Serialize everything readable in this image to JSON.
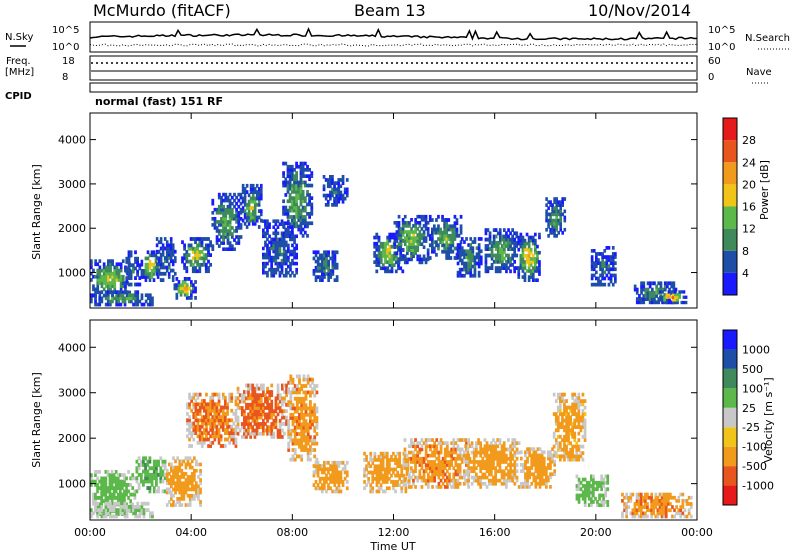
{
  "header": {
    "station": "McMurdo (fitACF)",
    "beam": "Beam 13",
    "date": "10/Nov/2014"
  },
  "top_panels": {
    "nsky_label": "N.Sky",
    "nsky_ticks": [
      "10^5",
      "10^0"
    ],
    "nsearch_label": "N.Search",
    "nsearch_ticks": [
      "10^5",
      "10^0"
    ],
    "freq_label_1": "Freq.",
    "freq_label_2": "[MHz]",
    "freq_ticks": [
      "18",
      "8"
    ],
    "nave_label": "Nave",
    "nave_ticks": [
      "60",
      "0"
    ],
    "cpid_label": "CPID",
    "cpid_text": "normal (fast) 151 RF"
  },
  "colors": {
    "power_scale": [
      "#1a1aff",
      "#1e4fa8",
      "#3f8a5a",
      "#5cb84a",
      "#f0c419",
      "#f29a1c",
      "#e8561e",
      "#e61a1a"
    ],
    "velocity_scale": [
      "#e61a1a",
      "#e8561e",
      "#f29a1c",
      "#f0c419",
      "#c8c8c8",
      "#5cb84a",
      "#3f8a5a",
      "#1e4fa8",
      "#1a1aff"
    ]
  },
  "chart_data": [
    {
      "type": "heatmap",
      "quantity": "power",
      "ylabel": "Slant Range [km]",
      "yticks": [
        "1000",
        "2000",
        "3000",
        "4000"
      ],
      "ylim": [
        200,
        4600
      ],
      "xlim_hours": [
        0,
        24
      ],
      "colorbar_label": "Power [dB]",
      "colorbar_ticks": [
        "4",
        "8",
        "12",
        "16",
        "20",
        "24",
        "28"
      ],
      "events": [
        {
          "t": [
            0.0,
            1.6
          ],
          "r": [
            450,
            1300
          ],
          "v": 18
        },
        {
          "t": [
            0.0,
            2.5
          ],
          "r": [
            250,
            600
          ],
          "v": 12
        },
        {
          "t": [
            1.4,
            2.0
          ],
          "r": [
            700,
            1500
          ],
          "v": 10
        },
        {
          "t": [
            2.0,
            2.8
          ],
          "r": [
            800,
            1500
          ],
          "v": 20
        },
        {
          "t": [
            2.6,
            3.4
          ],
          "r": [
            800,
            1800
          ],
          "v": 8
        },
        {
          "t": [
            3.3,
            4.2
          ],
          "r": [
            400,
            900
          ],
          "v": 22
        },
        {
          "t": [
            3.6,
            4.8
          ],
          "r": [
            1000,
            1800
          ],
          "v": 18
        },
        {
          "t": [
            4.8,
            6.0
          ],
          "r": [
            1500,
            2800
          ],
          "v": 14
        },
        {
          "t": [
            6.0,
            6.8
          ],
          "r": [
            2000,
            3000
          ],
          "v": 16
        },
        {
          "t": [
            6.8,
            8.2
          ],
          "r": [
            900,
            2200
          ],
          "v": 8
        },
        {
          "t": [
            7.6,
            8.8
          ],
          "r": [
            1800,
            3500
          ],
          "v": 14
        },
        {
          "t": [
            8.8,
            9.8
          ],
          "r": [
            800,
            1500
          ],
          "v": 10
        },
        {
          "t": [
            9.2,
            10.2
          ],
          "r": [
            2500,
            3200
          ],
          "v": 8
        },
        {
          "t": [
            11.2,
            12.4
          ],
          "r": [
            1000,
            1900
          ],
          "v": 18
        },
        {
          "t": [
            12.0,
            13.4
          ],
          "r": [
            1200,
            2300
          ],
          "v": 16
        },
        {
          "t": [
            13.4,
            14.7
          ],
          "r": [
            1300,
            2300
          ],
          "v": 14
        },
        {
          "t": [
            14.5,
            15.5
          ],
          "r": [
            900,
            1800
          ],
          "v": 12
        },
        {
          "t": [
            15.6,
            16.9
          ],
          "r": [
            1000,
            2000
          ],
          "v": 14
        },
        {
          "t": [
            16.9,
            17.8
          ],
          "r": [
            800,
            1900
          ],
          "v": 20
        },
        {
          "t": [
            18.0,
            18.8
          ],
          "r": [
            1800,
            2700
          ],
          "v": 12
        },
        {
          "t": [
            19.8,
            20.8
          ],
          "r": [
            700,
            1600
          ],
          "v": 8
        },
        {
          "t": [
            21.5,
            23.2
          ],
          "r": [
            300,
            800
          ],
          "v": 12
        },
        {
          "t": [
            22.5,
            23.6
          ],
          "r": [
            300,
            600
          ],
          "v": 24
        }
      ]
    },
    {
      "type": "heatmap",
      "quantity": "velocity",
      "ylabel": "Slant Range [km]",
      "yticks": [
        "1000",
        "2000",
        "3000",
        "4000"
      ],
      "ylim": [
        200,
        4600
      ],
      "xlabel": "Time UT",
      "xticks": [
        "00:00",
        "04:00",
        "08:00",
        "12:00",
        "16:00",
        "20:00",
        "00:00"
      ],
      "colorbar_label": "Velocity [m s⁻¹]",
      "colorbar_ticks": [
        "-1000",
        "-500",
        "-100",
        "-25",
        "25",
        "100",
        "500",
        "1000"
      ],
      "events": [
        {
          "t": [
            0.0,
            1.8
          ],
          "r": [
            300,
            1300
          ],
          "v": 50
        },
        {
          "t": [
            0.0,
            2.5
          ],
          "r": [
            250,
            600
          ],
          "v": 20
        },
        {
          "t": [
            1.8,
            3.0
          ],
          "r": [
            800,
            1600
          ],
          "v": 80
        },
        {
          "t": [
            3.0,
            4.4
          ],
          "r": [
            500,
            1600
          ],
          "v": -300
        },
        {
          "t": [
            3.8,
            5.8
          ],
          "r": [
            1800,
            3000
          ],
          "v": -500
        },
        {
          "t": [
            5.8,
            7.8
          ],
          "r": [
            2000,
            3200
          ],
          "v": -600
        },
        {
          "t": [
            7.8,
            9.0
          ],
          "r": [
            1500,
            3400
          ],
          "v": -400
        },
        {
          "t": [
            8.8,
            10.2
          ],
          "r": [
            800,
            1500
          ],
          "v": -200
        },
        {
          "t": [
            10.8,
            12.6
          ],
          "r": [
            800,
            1700
          ],
          "v": -300
        },
        {
          "t": [
            12.4,
            15.0
          ],
          "r": [
            900,
            2000
          ],
          "v": -400
        },
        {
          "t": [
            14.8,
            17.0
          ],
          "r": [
            900,
            2000
          ],
          "v": -300
        },
        {
          "t": [
            17.0,
            18.4
          ],
          "r": [
            900,
            1800
          ],
          "v": -200
        },
        {
          "t": [
            18.3,
            19.6
          ],
          "r": [
            1500,
            3000
          ],
          "v": -150
        },
        {
          "t": [
            19.2,
            20.5
          ],
          "r": [
            500,
            1200
          ],
          "v": 40
        },
        {
          "t": [
            21.0,
            23.8
          ],
          "r": [
            250,
            800
          ],
          "v": -400
        }
      ]
    }
  ]
}
